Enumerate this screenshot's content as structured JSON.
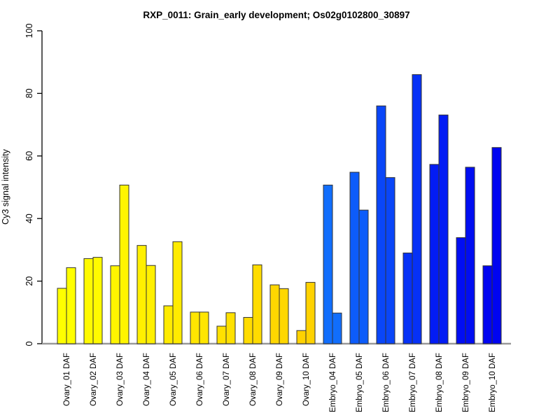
{
  "chart_data": {
    "type": "bar",
    "title": "RXP_0011: Grain_early development; Os02g0102800_30897",
    "xlabel": "",
    "ylabel": "Cy3 signal intensity",
    "ylim": [
      0,
      100
    ],
    "yticks": [
      0,
      20,
      40,
      60,
      80,
      100
    ],
    "grid": false,
    "legend": "none",
    "bars_per_category": 2,
    "bar_border_color": "#333333",
    "axis_color": "#000000",
    "baseline_color": "#999999",
    "background_color": "#ffffff",
    "groups": [
      {
        "label": "Ovary_01 DAF",
        "color": "#FFFF00",
        "values": [
          17.7,
          24.3
        ]
      },
      {
        "label": "Ovary_02 DAF",
        "color": "#FFFA00",
        "values": [
          27.2,
          27.6
        ]
      },
      {
        "label": "Ovary_03 DAF",
        "color": "#FFF500",
        "values": [
          24.9,
          50.7
        ]
      },
      {
        "label": "Ovary_04 DAF",
        "color": "#FFF000",
        "values": [
          31.4,
          25.0
        ]
      },
      {
        "label": "Ovary_05 DAF",
        "color": "#FFEB00",
        "values": [
          12.1,
          32.6
        ]
      },
      {
        "label": "Ovary_06 DAF",
        "color": "#FFE600",
        "values": [
          10.1,
          10.1
        ]
      },
      {
        "label": "Ovary_07 DAF",
        "color": "#FFE100",
        "values": [
          5.6,
          9.9
        ]
      },
      {
        "label": "Ovary_08 DAF",
        "color": "#FFDC00",
        "values": [
          8.4,
          25.2
        ]
      },
      {
        "label": "Ovary_09 DAF",
        "color": "#FFD700",
        "values": [
          18.8,
          17.6
        ]
      },
      {
        "label": "Ovary_10 DAF",
        "color": "#FFD200",
        "values": [
          4.2,
          19.6
        ]
      },
      {
        "label": "Embryo_04 DAF",
        "color": "#116EFC",
        "values": [
          50.7,
          9.8
        ]
      },
      {
        "label": "Embryo_05 DAF",
        "color": "#0D5CFA",
        "values": [
          54.8,
          42.7
        ]
      },
      {
        "label": "Embryo_06 DAF",
        "color": "#0A46F8",
        "values": [
          76.0,
          53.1
        ]
      },
      {
        "label": "Embryo_07 DAF",
        "color": "#0631F6",
        "values": [
          29.0,
          86.0
        ]
      },
      {
        "label": "Embryo_08 DAF",
        "color": "#031CF4",
        "values": [
          57.3,
          73.1
        ]
      },
      {
        "label": "Embryo_09 DAF",
        "color": "#010EF2",
        "values": [
          33.9,
          56.4
        ]
      },
      {
        "label": "Embryo_10 DAF",
        "color": "#0004F0",
        "values": [
          24.9,
          62.7
        ]
      }
    ]
  }
}
